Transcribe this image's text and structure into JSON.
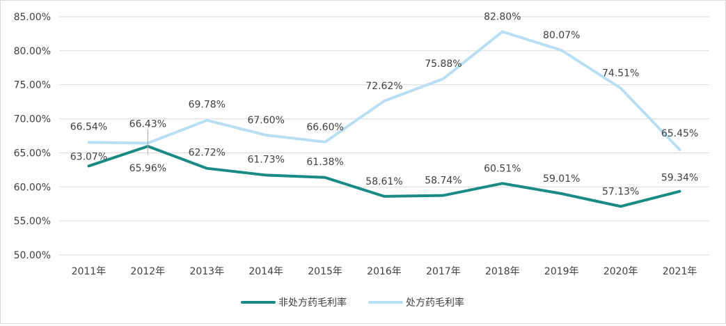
{
  "chart_data": {
    "type": "line",
    "title": "",
    "xlabel": "",
    "ylabel": "",
    "categories": [
      "2011年",
      "2012年",
      "2013年",
      "2014年",
      "2015年",
      "2016年",
      "2017年",
      "2018年",
      "2019年",
      "2020年",
      "2021年"
    ],
    "ylim": [
      50,
      85
    ],
    "yticks": [
      50,
      55,
      60,
      65,
      70,
      75,
      80,
      85
    ],
    "ytick_labels": [
      "50.00%",
      "55.00%",
      "60.00%",
      "65.00%",
      "70.00%",
      "75.00%",
      "80.00%",
      "85.00%"
    ],
    "grid": true,
    "legend_position": "bottom",
    "series": [
      {
        "name": "非处方药毛利率",
        "color": "#1a8a85",
        "values": [
          63.07,
          65.96,
          62.72,
          61.73,
          61.38,
          58.61,
          58.74,
          60.51,
          59.01,
          57.13,
          59.34
        ],
        "labels": [
          "63.07%",
          "65.96%",
          "62.72%",
          "61.73%",
          "61.38%",
          "58.61%",
          "58.74%",
          "60.51%",
          "59.01%",
          "57.13%",
          "59.34%"
        ]
      },
      {
        "name": "处方药毛利率",
        "color": "#b8dff3",
        "values": [
          66.54,
          66.43,
          69.78,
          67.6,
          66.6,
          72.62,
          75.88,
          82.8,
          80.07,
          74.51,
          65.45
        ],
        "labels": [
          "66.54%",
          "66.43%",
          "69.78%",
          "67.60%",
          "66.60%",
          "72.62%",
          "75.88%",
          "82.80%",
          "80.07%",
          "74.51%",
          "65.45%"
        ]
      }
    ]
  }
}
